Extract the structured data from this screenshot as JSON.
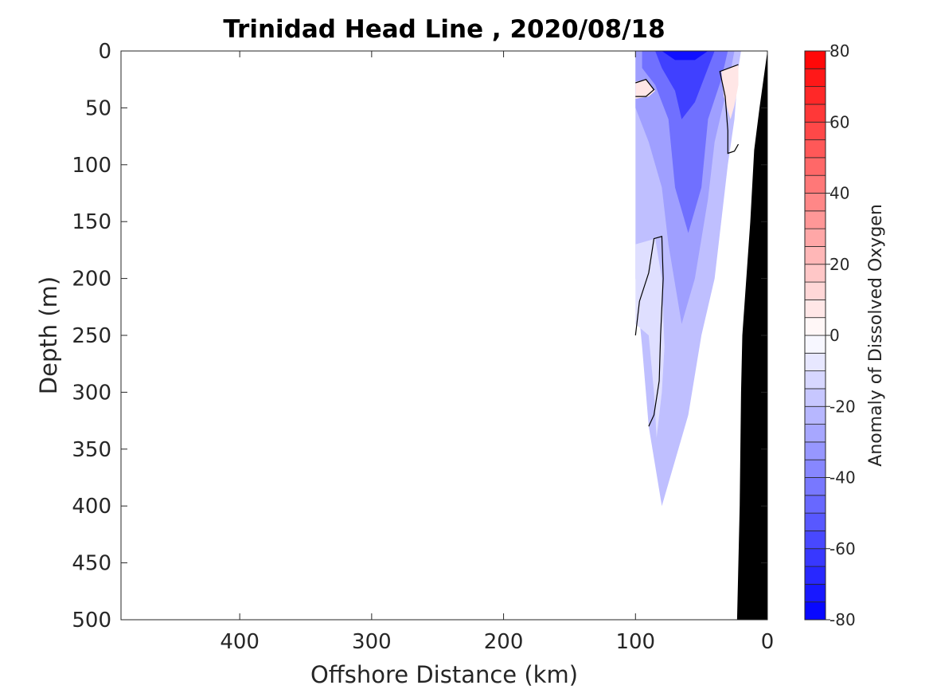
{
  "chart_data": {
    "type": "heatmap",
    "title": "Trinidad Head Line , 2020/08/18",
    "xlabel": "Offshore Distance (km)",
    "ylabel": "Depth (m)",
    "xlim": [
      490,
      0
    ],
    "ylim": [
      0,
      500
    ],
    "x_reversed": true,
    "y_reversed": true,
    "x_ticks": [
      400,
      300,
      200,
      100,
      0
    ],
    "y_ticks": [
      0,
      50,
      100,
      150,
      200,
      250,
      300,
      350,
      400,
      450,
      500
    ],
    "colorbar": {
      "label": "Anomaly of Dissolved Oxygen",
      "min": -80,
      "max": 80,
      "step": 5,
      "ticks": [
        -80,
        -60,
        -40,
        -20,
        0,
        20,
        40,
        60,
        80
      ],
      "colors": {
        "low": "#0000ff",
        "mid": "#ffffff",
        "high": "#ff0000"
      }
    },
    "bathymetry_color": "#000000",
    "bathymetry": [
      [
        0,
        0
      ],
      [
        6,
        50
      ],
      [
        10,
        87
      ],
      [
        13,
        150
      ],
      [
        16,
        200
      ],
      [
        19,
        250
      ],
      [
        20,
        300
      ],
      [
        21,
        400
      ],
      [
        23,
        500
      ]
    ],
    "regions": [
      {
        "value": -20,
        "points": [
          [
            100,
            0
          ],
          [
            20,
            0
          ],
          [
            22,
            15
          ],
          [
            25,
            60
          ],
          [
            30,
            100
          ],
          [
            35,
            150
          ],
          [
            40,
            200
          ],
          [
            50,
            250
          ],
          [
            60,
            320
          ],
          [
            70,
            360
          ],
          [
            80,
            400
          ],
          [
            90,
            330
          ],
          [
            95,
            260
          ],
          [
            100,
            200
          ]
        ]
      },
      {
        "value": -30,
        "points": [
          [
            100,
            0
          ],
          [
            25,
            0
          ],
          [
            30,
            30
          ],
          [
            40,
            80
          ],
          [
            45,
            130
          ],
          [
            55,
            200
          ],
          [
            65,
            240
          ],
          [
            75,
            170
          ],
          [
            80,
            120
          ],
          [
            90,
            80
          ],
          [
            100,
            50
          ]
        ]
      },
      {
        "value": -45,
        "points": [
          [
            95,
            0
          ],
          [
            30,
            0
          ],
          [
            35,
            25
          ],
          [
            45,
            60
          ],
          [
            50,
            120
          ],
          [
            60,
            160
          ],
          [
            70,
            120
          ],
          [
            75,
            60
          ],
          [
            85,
            30
          ],
          [
            95,
            15
          ]
        ]
      },
      {
        "value": -60,
        "points": [
          [
            85,
            0
          ],
          [
            40,
            0
          ],
          [
            45,
            15
          ],
          [
            55,
            45
          ],
          [
            65,
            60
          ],
          [
            70,
            35
          ],
          [
            80,
            15
          ]
        ]
      },
      {
        "value": -75,
        "points": [
          [
            80,
            0
          ],
          [
            45,
            0
          ],
          [
            55,
            8
          ],
          [
            70,
            8
          ]
        ]
      },
      {
        "value": -10,
        "points": [
          [
            100,
            170
          ],
          [
            85,
            165
          ],
          [
            80,
            200
          ],
          [
            78,
            260
          ],
          [
            80,
            300
          ],
          [
            84,
            340
          ],
          [
            86,
            300
          ],
          [
            90,
            250
          ],
          [
            100,
            240
          ]
        ]
      },
      {
        "value": 8,
        "points": [
          [
            100,
            27
          ],
          [
            92,
            25
          ],
          [
            85,
            35
          ],
          [
            90,
            40
          ],
          [
            100,
            42
          ]
        ]
      },
      {
        "value": 8,
        "points": [
          [
            22,
            12
          ],
          [
            35,
            18
          ],
          [
            33,
            40
          ],
          [
            28,
            60
          ],
          [
            25,
            48
          ],
          [
            22,
            30
          ]
        ]
      }
    ],
    "contours_zero": [
      [
        [
          100,
          28
        ],
        [
          92,
          25
        ],
        [
          86,
          34
        ],
        [
          92,
          40
        ],
        [
          100,
          40
        ]
      ],
      [
        [
          22,
          12
        ],
        [
          36,
          18
        ],
        [
          32,
          40
        ],
        [
          30,
          70
        ],
        [
          30,
          90
        ],
        [
          25,
          88
        ],
        [
          22,
          82
        ]
      ],
      [
        [
          100,
          250
        ],
        [
          97,
          220
        ],
        [
          90,
          195
        ],
        [
          86,
          165
        ],
        [
          80,
          163
        ],
        [
          79,
          200
        ],
        [
          81,
          250
        ],
        [
          82,
          290
        ],
        [
          86,
          320
        ],
        [
          90,
          330
        ]
      ]
    ]
  }
}
